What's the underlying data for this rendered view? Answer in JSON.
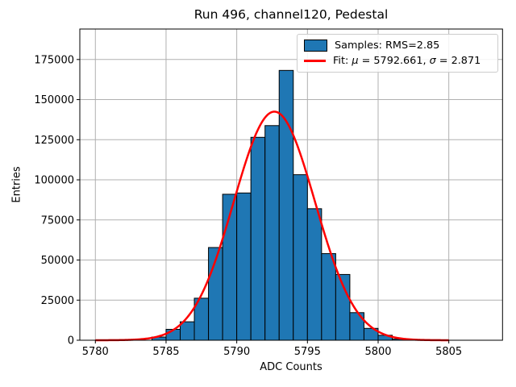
{
  "figure": {
    "title": "Run 496, channel120, Pedestal",
    "xlabel": "ADC Counts",
    "ylabel": "Entries"
  },
  "legend": {
    "samples_label": "Samples: RMS=2.85",
    "fit_prefix": "Fit: ",
    "mu_symbol": "μ",
    "mu_eq": " = 5792.661, ",
    "sigma_symbol": "σ",
    "sigma_eq": " = 2.871"
  },
  "chart_data": {
    "type": "bar",
    "subtype": "histogram",
    "title": "Run 496, channel120, Pedestal",
    "xlabel": "ADC Counts",
    "ylabel": "Entries",
    "xlim": [
      5778.9,
      5808.8
    ],
    "ylim": [
      0,
      194000
    ],
    "xticks": [
      5780,
      5785,
      5790,
      5795,
      5800,
      5805
    ],
    "yticks": [
      0,
      25000,
      50000,
      75000,
      100000,
      125000,
      150000,
      175000
    ],
    "grid": true,
    "legend_position": "upper right",
    "colors": {
      "bar_fill": "#1f77b4",
      "bar_edge": "#000000",
      "fit_line": "#ff0000",
      "grid": "#b0b0b0"
    },
    "histogram": {
      "bin_width": 1,
      "bin_left_edges": [
        5784,
        5785,
        5786,
        5787,
        5788,
        5789,
        5790,
        5791,
        5792,
        5793,
        5794,
        5795,
        5796,
        5797,
        5798,
        5799,
        5800,
        5801
      ],
      "counts": [
        2000,
        6800,
        11500,
        26200,
        57800,
        91000,
        91800,
        126500,
        133800,
        168200,
        103200,
        82000,
        54000,
        41000,
        17200,
        7400,
        3100,
        700
      ]
    },
    "fit": {
      "model": "gaussian",
      "mu": 5792.661,
      "sigma": 2.871,
      "amplitude": 142500,
      "x_range": [
        5780,
        5805
      ]
    },
    "legend_entries": [
      "Samples: RMS=2.85",
      "Fit: μ = 5792.661, σ = 2.871"
    ]
  }
}
